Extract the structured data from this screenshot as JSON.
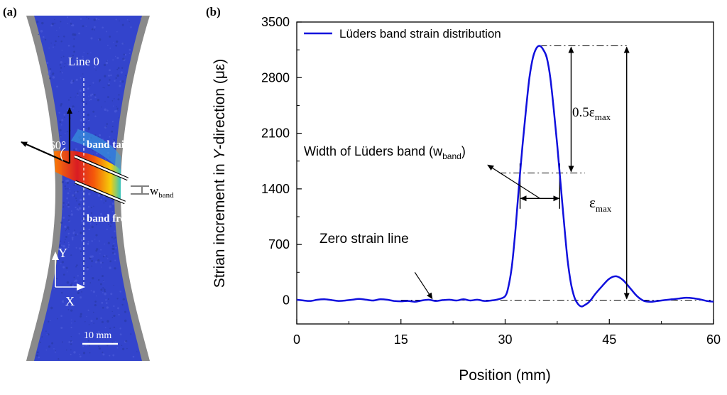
{
  "panel_a": {
    "label": "(a)",
    "line0": "Line 0",
    "angle": "~60°",
    "band_tail": "band tail",
    "band_front": "band front",
    "w_label": "w",
    "w_sub": "band",
    "axis_y": "Y",
    "axis_x": "X",
    "scale_bar": "10 mm"
  },
  "colors": {
    "series": "#1010dd",
    "specimen_blue": "#3344cc",
    "specimen_grey": "#8a8a8a"
  },
  "chart_data": {
    "type": "line",
    "panel_label": "(b)",
    "xlabel": "Position (mm)",
    "ylabel_pre": "Strian increment in ",
    "ylabel_italic": "Y",
    "ylabel_post": "-direction (με)",
    "xlim": [
      0,
      60
    ],
    "ylim": [
      -300,
      3500
    ],
    "xticks": [
      0,
      15,
      30,
      45,
      60
    ],
    "yticks": [
      0,
      700,
      1400,
      2100,
      2800,
      3500
    ],
    "legend": "Lüders band strain distribution",
    "series": [
      {
        "name": "Lüders band strain distribution",
        "x": [
          0,
          1,
          2,
          3,
          4,
          5,
          6,
          7,
          8,
          9,
          10,
          11,
          12,
          13,
          14,
          15,
          16,
          17,
          18,
          19,
          20,
          21,
          22,
          23,
          24,
          25,
          26,
          27,
          28,
          29,
          30,
          30.5,
          31,
          31.5,
          32,
          32.5,
          33,
          33.5,
          34,
          34.5,
          35,
          35.5,
          36,
          36.5,
          37,
          37.5,
          38,
          38.5,
          39,
          39.5,
          40,
          40.5,
          41,
          41.5,
          42,
          42.5,
          43,
          44,
          45,
          46,
          47,
          48,
          49,
          50,
          51,
          52,
          53,
          54,
          55,
          56,
          57,
          58,
          59,
          60
        ],
        "values": [
          5,
          -5,
          -10,
          5,
          10,
          0,
          -10,
          -5,
          5,
          15,
          5,
          -5,
          10,
          5,
          -10,
          -15,
          -10,
          -20,
          -5,
          5,
          -10,
          0,
          5,
          -5,
          10,
          -5,
          5,
          -10,
          -5,
          10,
          50,
          180,
          450,
          900,
          1450,
          1950,
          2400,
          2800,
          3050,
          3170,
          3200,
          3150,
          3050,
          2800,
          2400,
          1950,
          1450,
          950,
          500,
          200,
          30,
          -50,
          -80,
          -60,
          -30,
          20,
          80,
          180,
          270,
          300,
          250,
          150,
          50,
          -10,
          -20,
          -10,
          0,
          10,
          20,
          30,
          25,
          10,
          -10,
          -20
        ]
      }
    ],
    "annotations": {
      "half_max": "0.5ε",
      "half_max_sub": "max",
      "max": "ε",
      "max_sub": "max",
      "width": "Width of Lüders band (w",
      "width_sub": "band",
      "width_close": ")",
      "zero_line": "Zero strain line"
    }
  }
}
